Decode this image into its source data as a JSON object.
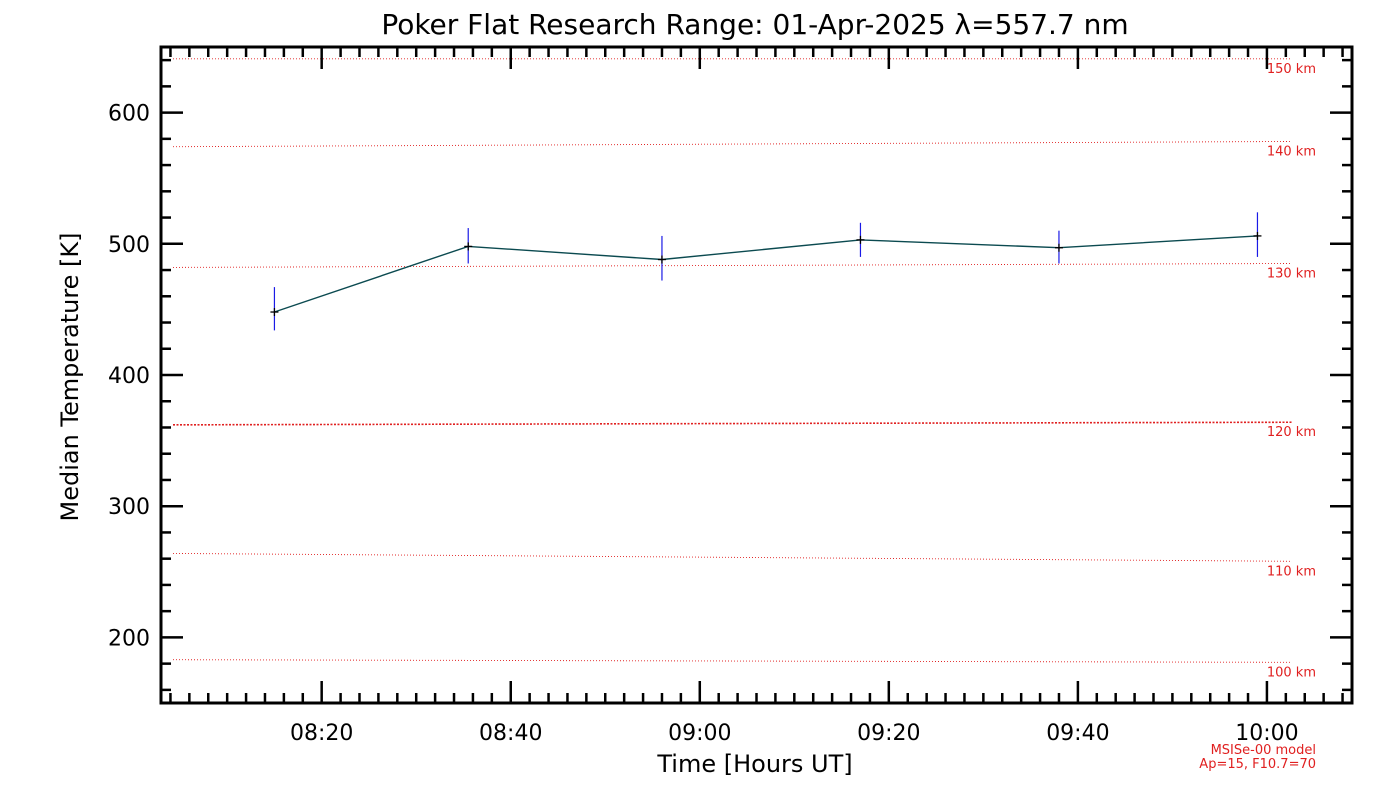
{
  "chart_data": {
    "type": "line",
    "title": "Poker Flat Research Range: 01-Apr-2025 λ=557.7 nm",
    "xlabel": "Time [Hours UT]",
    "ylabel": "Median Temperature [K]",
    "x_tick_labels": [
      "08:20",
      "08:40",
      "09:00",
      "09:20",
      "09:40",
      "10:00"
    ],
    "x_ticks_hours": [
      8.3333,
      8.6667,
      9.0,
      9.3333,
      9.6667,
      10.0
    ],
    "y_ticks": [
      200,
      300,
      400,
      500,
      600
    ],
    "xlim_hours": [
      8.05,
      10.15
    ],
    "ylim": [
      150,
      650
    ],
    "grid": false,
    "series": [
      {
        "x_hours": [
          8.25,
          8.5917,
          8.9333,
          9.2833,
          9.6333,
          9.9833
        ],
        "values": [
          448,
          498,
          488,
          503,
          497,
          506
        ],
        "error_low": [
          434,
          485,
          472,
          490,
          485,
          490
        ],
        "error_high": [
          467,
          512,
          506,
          516,
          510,
          524
        ]
      }
    ],
    "reference_lines": [
      {
        "label": "150 km",
        "y_start": 641,
        "y_end": 641
      },
      {
        "label": "140 km",
        "y_start": 574,
        "y_end": 578
      },
      {
        "label": "130 km",
        "y_start": 482,
        "y_end": 485
      },
      {
        "label": "120 km",
        "y_start": 362,
        "y_end": 364
      },
      {
        "label": "110 km",
        "y_start": 264,
        "y_end": 258
      },
      {
        "label": "100 km",
        "y_start": 183,
        "y_end": 181
      }
    ],
    "model_note": [
      "MSISe-00 model",
      "Ap=15, F10.7=70"
    ]
  },
  "colors": {
    "axis": "#000000",
    "line": "#0b4a50",
    "error_bar": "#1a1ae6",
    "reference": "#e02020",
    "reference_bold": "#e02020"
  }
}
